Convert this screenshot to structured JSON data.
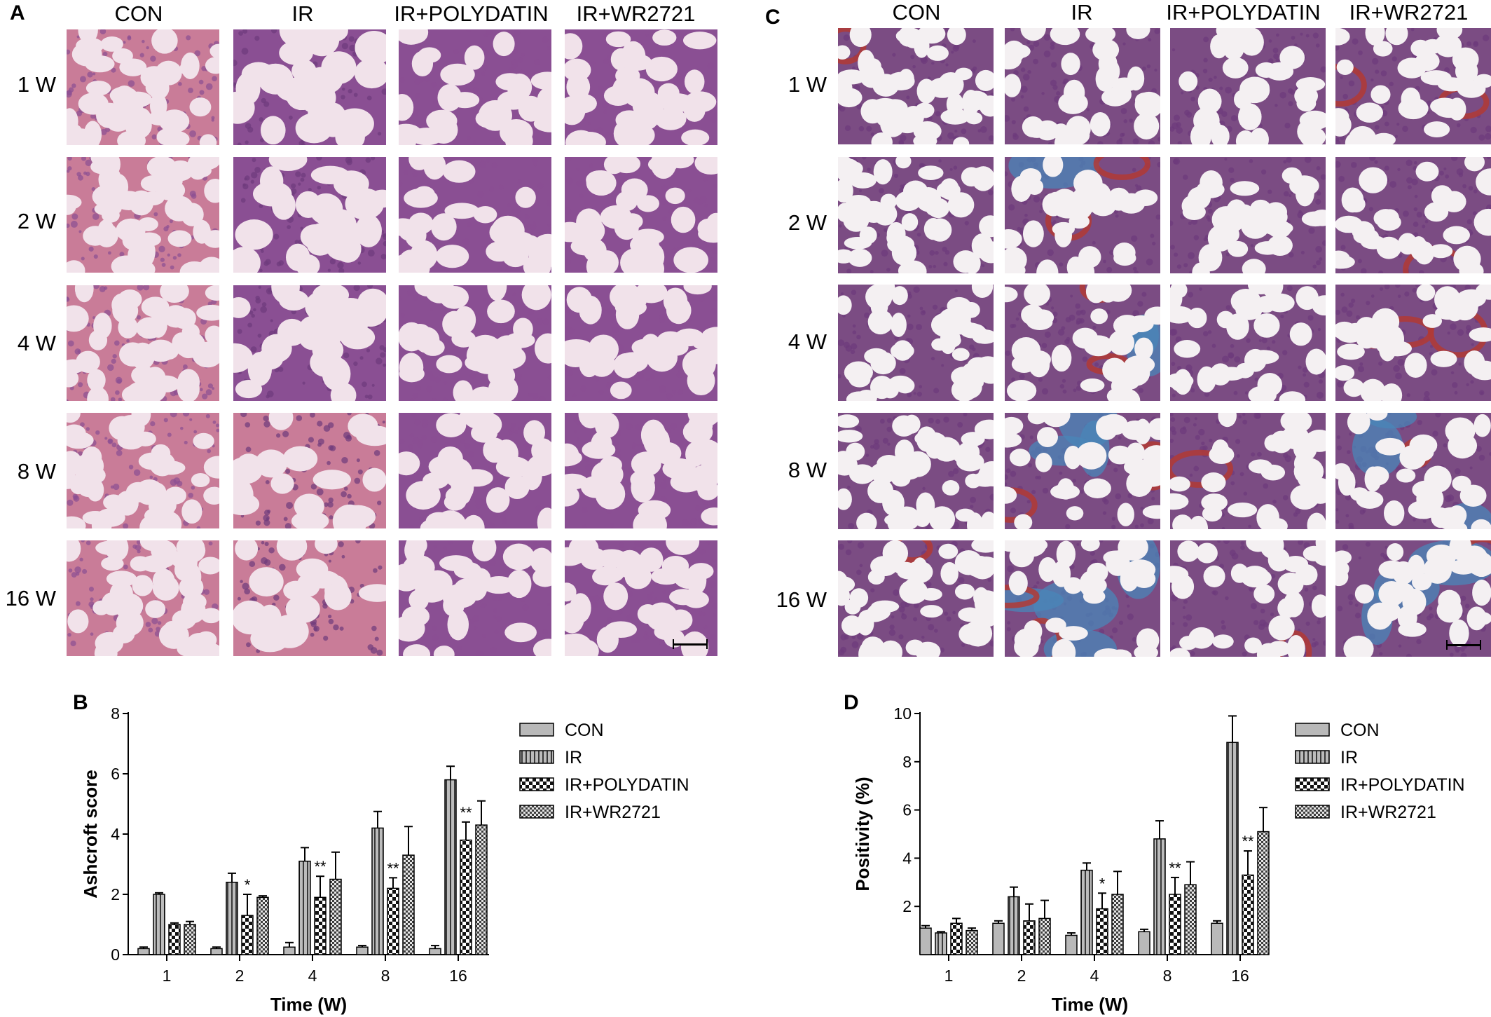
{
  "panels": {
    "A": {
      "letter": "A",
      "columns": [
        "CON",
        "IR",
        "IR+POLYDATIN",
        "IR+WR2721"
      ],
      "rows": [
        "1 W",
        "2 W",
        "4 W",
        "8 W",
        "16 W"
      ]
    },
    "C": {
      "letter": "C",
      "columns": [
        "CON",
        "IR",
        "IR+POLYDATIN",
        "IR+WR2721"
      ],
      "rows": [
        "1 W",
        "2 W",
        "4 W",
        "8 W",
        "16 W"
      ]
    },
    "B": {
      "letter": "B"
    },
    "D": {
      "letter": "D"
    }
  },
  "stain_colors": {
    "he_background": "#f1e2ea",
    "he_tissue": "#8a4f93",
    "he_dense": "#6d3a7c",
    "he_pink": "#c97c98",
    "masson_background": "#f4f0f2",
    "masson_tissue": "#7b4c83",
    "masson_red": "#b23a35",
    "masson_blue": "#4a86b8"
  },
  "chart_data": [
    {
      "type": "bar",
      "panel": "B",
      "xlabel": "Time (W)",
      "ylabel": "Ashcroft score",
      "categories": [
        "1",
        "2",
        "4",
        "8",
        "16"
      ],
      "ylim": [
        0,
        8
      ],
      "yticks": [
        "0",
        "2",
        "4",
        "6",
        "8"
      ],
      "legend_position": "right",
      "series": [
        {
          "name": "CON",
          "pattern": "solid-gray",
          "values": [
            0.2,
            0.2,
            0.25,
            0.25,
            0.2
          ],
          "errors": [
            0.05,
            0.05,
            0.15,
            0.05,
            0.1
          ]
        },
        {
          "name": "IR",
          "pattern": "vertical-lines",
          "values": [
            2.0,
            2.4,
            3.1,
            4.2,
            5.8
          ],
          "errors": [
            0.05,
            0.3,
            0.45,
            0.55,
            0.45
          ]
        },
        {
          "name": "IR+POLYDATIN",
          "pattern": "checker",
          "values": [
            1.0,
            1.3,
            1.9,
            2.2,
            3.8
          ],
          "errors": [
            0.05,
            0.7,
            0.7,
            0.35,
            0.6
          ]
        },
        {
          "name": "IR+WR2721",
          "pattern": "fine-checker",
          "values": [
            1.0,
            1.9,
            2.5,
            3.3,
            4.3
          ],
          "errors": [
            0.1,
            0.05,
            0.9,
            0.95,
            0.8
          ]
        }
      ],
      "annotations": [
        {
          "series": "IR+POLYDATIN",
          "category": "2",
          "text": "*"
        },
        {
          "series": "IR+POLYDATIN",
          "category": "4",
          "text": "**"
        },
        {
          "series": "IR+POLYDATIN",
          "category": "8",
          "text": "**"
        },
        {
          "series": "IR+POLYDATIN",
          "category": "16",
          "text": "**"
        }
      ]
    },
    {
      "type": "bar",
      "panel": "D",
      "xlabel": "Time (W)",
      "ylabel": "Positivity (%)",
      "categories": [
        "1",
        "2",
        "4",
        "8",
        "16"
      ],
      "ylim": [
        0,
        10
      ],
      "yticks": [
        "2",
        "4",
        "6",
        "8",
        "10"
      ],
      "legend_position": "right",
      "series": [
        {
          "name": "CON",
          "pattern": "solid-gray",
          "values": [
            1.1,
            1.3,
            0.8,
            0.95,
            1.3
          ],
          "errors": [
            0.1,
            0.1,
            0.1,
            0.1,
            0.1
          ]
        },
        {
          "name": "IR",
          "pattern": "vertical-lines",
          "values": [
            0.9,
            2.4,
            3.5,
            4.8,
            8.8
          ],
          "errors": [
            0.05,
            0.4,
            0.3,
            0.75,
            1.1
          ]
        },
        {
          "name": "IR+POLYDATIN",
          "pattern": "checker",
          "values": [
            1.3,
            1.4,
            1.9,
            2.5,
            3.3
          ],
          "errors": [
            0.2,
            0.7,
            0.65,
            0.7,
            1.0
          ]
        },
        {
          "name": "IR+WR2721",
          "pattern": "fine-checker",
          "values": [
            1.0,
            1.5,
            2.5,
            2.9,
            5.1
          ],
          "errors": [
            0.1,
            0.75,
            0.95,
            0.95,
            1.0
          ]
        }
      ],
      "annotations": [
        {
          "series": "IR+POLYDATIN",
          "category": "4",
          "text": "*"
        },
        {
          "series": "IR+POLYDATIN",
          "category": "8",
          "text": "**"
        },
        {
          "series": "IR+POLYDATIN",
          "category": "16",
          "text": "**"
        }
      ]
    }
  ]
}
